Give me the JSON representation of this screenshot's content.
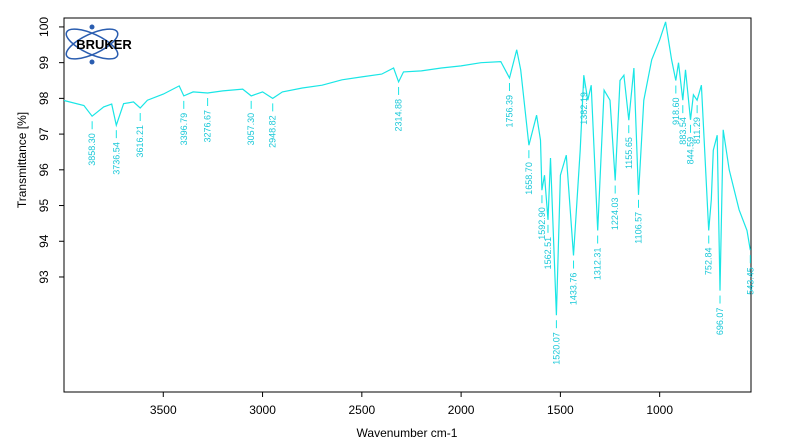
{
  "chart_data": {
    "type": "line",
    "logo": "BRUKER",
    "xlabel": "Wavenumber cm-1",
    "ylabel": "Transmittance [%]",
    "color": "#19e6e6",
    "xlim": [
      4000,
      540
    ],
    "ylim": [
      89.78,
      100.25
    ],
    "xticks": [
      3500,
      3000,
      2500,
      2000,
      1500,
      1000
    ],
    "yticks": [
      93,
      94,
      95,
      96,
      97,
      98,
      99,
      100
    ],
    "x": [
      4000,
      3900,
      3858.3,
      3800,
      3760,
      3736.54,
      3700,
      3650,
      3616.21,
      3580,
      3500,
      3420,
      3396.79,
      3350,
      3276.67,
      3200,
      3100,
      3057.3,
      3000,
      2948.82,
      2900,
      2800,
      2700,
      2600,
      2500,
      2400,
      2340,
      2314.88,
      2290,
      2200,
      2100,
      2000,
      1900,
      1800,
      1756.39,
      1720,
      1700,
      1658.7,
      1620,
      1600,
      1592.9,
      1580,
      1562.51,
      1550,
      1520.07,
      1500,
      1470,
      1433.76,
      1400,
      1382.19,
      1362,
      1345,
      1312.31,
      1280,
      1250,
      1224.03,
      1200,
      1180,
      1155.65,
      1130,
      1106.57,
      1080,
      1040,
      1000,
      970,
      940,
      918.6,
      905,
      883.54,
      870,
      844.59,
      830,
      811.29,
      790,
      752.84,
      740,
      730,
      710,
      696.07,
      680,
      650,
      600,
      560,
      543.45
    ],
    "values": [
      97.94,
      97.8,
      97.5,
      97.76,
      97.84,
      97.25,
      97.85,
      97.9,
      97.73,
      97.95,
      98.12,
      98.35,
      98.07,
      98.18,
      98.15,
      98.21,
      98.26,
      98.07,
      98.18,
      98.0,
      98.18,
      98.29,
      98.37,
      98.52,
      98.6,
      98.68,
      98.85,
      98.46,
      98.74,
      98.77,
      98.85,
      98.91,
      99.0,
      99.03,
      98.57,
      99.36,
      98.8,
      96.69,
      97.53,
      96.83,
      95.43,
      95.85,
      94.6,
      96.33,
      91.93,
      95.85,
      96.41,
      93.6,
      96.55,
      98.65,
      97.95,
      98.37,
      94.3,
      98.23,
      97.95,
      95.7,
      98.5,
      98.65,
      97.39,
      98.85,
      95.3,
      97.95,
      99.08,
      99.64,
      100.14,
      99.08,
      98.5,
      99.0,
      97.95,
      98.8,
      97.4,
      98.1,
      97.95,
      98.37,
      94.3,
      95.16,
      96.55,
      96.97,
      92.62,
      97.12,
      96.0,
      94.88,
      94.3,
      93.75
    ],
    "peaks": [
      {
        "value": 3858.3,
        "label": "3858.30"
      },
      {
        "value": 3736.54,
        "label": "3736.54"
      },
      {
        "value": 3616.21,
        "label": "3616.21"
      },
      {
        "value": 3396.79,
        "label": "3396.79"
      },
      {
        "value": 3276.67,
        "label": "3276.67"
      },
      {
        "value": 3057.3,
        "label": "3057.30"
      },
      {
        "value": 2948.82,
        "label": "2948.82"
      },
      {
        "value": 2314.88,
        "label": "2314.88"
      },
      {
        "value": 1756.39,
        "label": "1756.39"
      },
      {
        "value": 1658.7,
        "label": "1658.70"
      },
      {
        "value": 1592.9,
        "label": "1592.90"
      },
      {
        "value": 1562.51,
        "label": "1562.51"
      },
      {
        "value": 1520.07,
        "label": "1520.07"
      },
      {
        "value": 1433.76,
        "label": "1433.76"
      },
      {
        "value": 1382.19,
        "label": "1382.19"
      },
      {
        "value": 1312.31,
        "label": "1312.31"
      },
      {
        "value": 1224.03,
        "label": "1224.03"
      },
      {
        "value": 1155.65,
        "label": "1155.65"
      },
      {
        "value": 1106.57,
        "label": "1106.57"
      },
      {
        "value": 918.6,
        "label": "918.60"
      },
      {
        "value": 883.54,
        "label": "883.54"
      },
      {
        "value": 844.59,
        "label": "844.59"
      },
      {
        "value": 811.29,
        "label": "811.29"
      },
      {
        "value": 752.84,
        "label": "752.84"
      },
      {
        "value": 696.07,
        "label": "696.07"
      },
      {
        "value": 543.45,
        "label": "543.45"
      }
    ]
  }
}
